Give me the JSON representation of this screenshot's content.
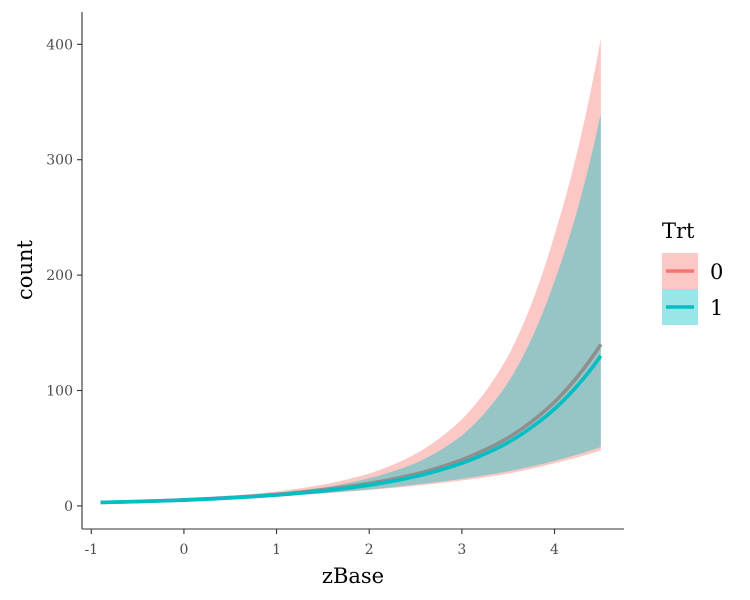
{
  "chart_data": {
    "type": "line",
    "xlabel": "zBase",
    "ylabel": "count",
    "xlim": [
      -1.1,
      4.75
    ],
    "ylim": [
      -20,
      428
    ],
    "x_ticks": [
      -1,
      0,
      1,
      2,
      3,
      4
    ],
    "x_tick_labels": [
      "-1",
      "0",
      "1",
      "2",
      "3",
      "4"
    ],
    "y_ticks": [
      0,
      100,
      200,
      300,
      400
    ],
    "y_tick_labels": [
      "0",
      "100",
      "200",
      "300",
      "400"
    ],
    "grid": false,
    "legend": {
      "title": "Trt",
      "placement": "right",
      "entries": [
        {
          "label": "0",
          "color": "#F8766D",
          "fill": "#F8766D"
        },
        {
          "label": "1",
          "color": "#00BFC4",
          "fill": "#00BFC4"
        }
      ]
    },
    "series": [
      {
        "name": "0",
        "color": "#F8766D",
        "fill": "#F8766D",
        "x": [
          -0.9,
          0.0,
          0.5,
          1.0,
          1.5,
          2.0,
          2.5,
          3.0,
          3.5,
          4.0,
          4.5
        ],
        "y": [
          3.0,
          5.3,
          7.3,
          10.0,
          14.0,
          19.5,
          27.5,
          40.0,
          59.0,
          90.0,
          140.0
        ],
        "lower": [
          2.5,
          4.8,
          6.3,
          8.3,
          10.8,
          13.8,
          17.5,
          22.0,
          28.0,
          37.0,
          48.0
        ],
        "upper": [
          3.7,
          6.0,
          8.6,
          12.5,
          18.5,
          28.0,
          45.0,
          75.0,
          130.0,
          235.0,
          405.0
        ]
      },
      {
        "name": "1",
        "color": "#00BFC4",
        "fill": "#00BFC4",
        "x": [
          -0.9,
          0.0,
          0.5,
          1.0,
          1.5,
          2.0,
          2.5,
          3.0,
          3.5,
          4.0,
          4.5
        ],
        "y": [
          3.0,
          5.0,
          6.9,
          9.4,
          13.0,
          18.0,
          25.5,
          37.0,
          55.0,
          84.0,
          130.0
        ],
        "lower": [
          2.6,
          4.7,
          6.2,
          8.4,
          11.0,
          14.3,
          18.5,
          23.5,
          30.0,
          39.0,
          51.0
        ],
        "upper": [
          3.5,
          5.5,
          7.8,
          11.0,
          16.0,
          24.0,
          37.0,
          61.0,
          107.0,
          195.0,
          340.0
        ]
      }
    ]
  }
}
